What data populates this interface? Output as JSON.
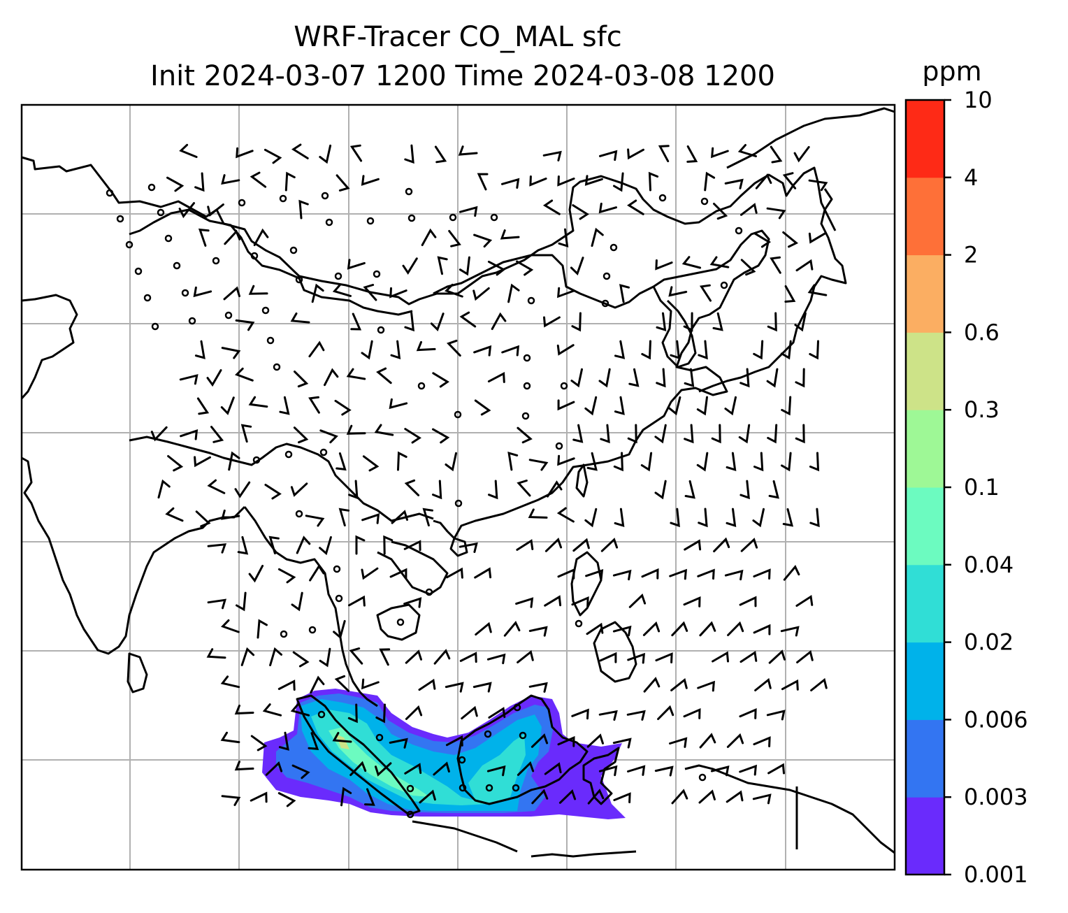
{
  "figure": {
    "title_line1": "WRF-Tracer CO_MAL sfc",
    "title_line2": "Init 2024-03-07 1200 Time 2024-03-08 1200"
  },
  "colorbar": {
    "unit": "ppm",
    "levels": [
      "0.001",
      "0.003",
      "0.006",
      "0.02",
      "0.04",
      "0.1",
      "0.3",
      "0.6",
      "2",
      "4",
      "10"
    ],
    "colors": [
      "#6a2bfc",
      "#3375f2",
      "#00b2ea",
      "#30ded6",
      "#6cfbc0",
      "#9ef896",
      "#cde388",
      "#fbae62",
      "#fe7038",
      "#fe2a16"
    ]
  },
  "map": {
    "gridlines": true,
    "wind_barbs": true,
    "coastlines": true,
    "tracer_region": "Malaysia / Borneo"
  }
}
